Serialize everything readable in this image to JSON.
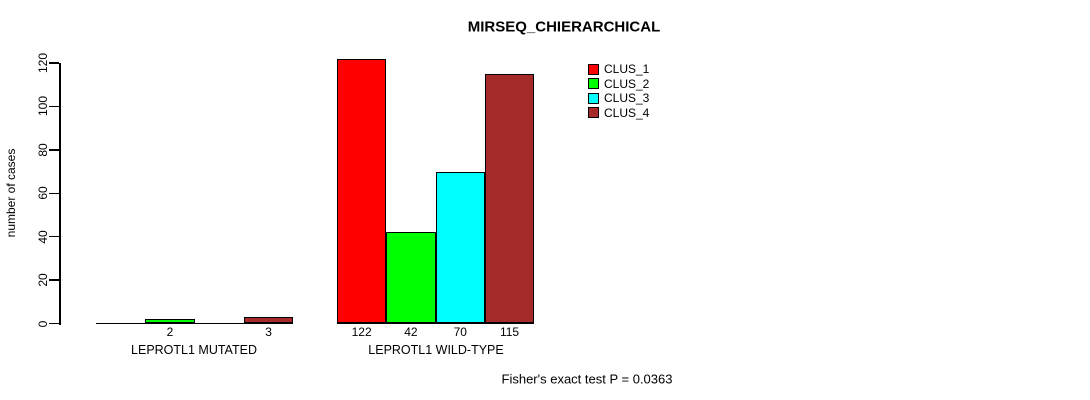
{
  "chart_data": {
    "type": "bar",
    "title": "MIRSEQ_CHIERARCHICAL",
    "ylabel": "number of cases",
    "xlabel": "",
    "ylim": [
      0,
      120
    ],
    "yticks": [
      0,
      20,
      40,
      60,
      80,
      100,
      120
    ],
    "grid": false,
    "legend_position": "top-right",
    "categories": [
      "LEPROTL1 MUTATED",
      "LEPROTL1 WILD-TYPE"
    ],
    "series": [
      {
        "name": "CLUS_1",
        "color": "#FF0000",
        "values": [
          0,
          122
        ]
      },
      {
        "name": "CLUS_2",
        "color": "#00FF00",
        "values": [
          2,
          42
        ]
      },
      {
        "name": "CLUS_3",
        "color": "#00FFFF",
        "values": [
          0,
          70
        ]
      },
      {
        "name": "CLUS_4",
        "color": "#A52A2A",
        "values": [
          3,
          115
        ]
      }
    ],
    "bar_value_labels": [
      [
        "",
        "2",
        "",
        "3"
      ],
      [
        "122",
        "42",
        "70",
        "115"
      ]
    ],
    "annotation": "Fisher's exact test P = 0.0363",
    "axis_color": "#000000",
    "background_color": "#FFFFFF"
  }
}
